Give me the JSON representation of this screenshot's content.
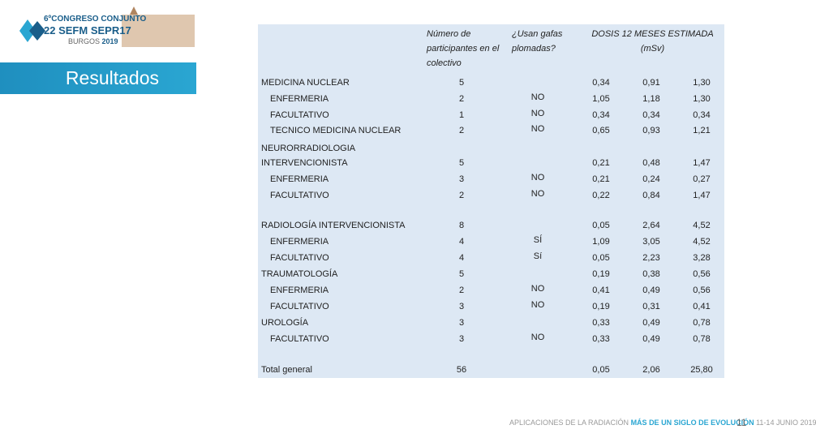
{
  "logo": {
    "edition": "6º",
    "line1": "CONGRESO CONJUNTO",
    "year_left": "22",
    "sefm": "SEFM",
    "sepr": "SEPR",
    "year_right": "17",
    "city": "BURGOS",
    "year": "2019"
  },
  "section_title": "Resultados",
  "table": {
    "header": {
      "participants": "Número de participantes en el colectivo",
      "goggles": "¿Usan gafas plomadas?",
      "dose": "DOSIS 12 MESES ESTIMADA (mSv)"
    },
    "groups": [
      {
        "label": "MEDICINA NUCLEAR",
        "n": 5,
        "dose": [
          "0,34",
          "0,91",
          "1,30"
        ],
        "rows": [
          {
            "label": "ENFERMERIA",
            "n": 2,
            "goggles": "NO",
            "dose": [
              "1,05",
              "1,18",
              "1,30"
            ]
          },
          {
            "label": "FACULTATIVO",
            "n": 1,
            "goggles": "NO",
            "dose": [
              "0,34",
              "0,34",
              "0,34"
            ]
          },
          {
            "label": "TECNICO MEDICINA NUCLEAR",
            "n": 2,
            "goggles": "NO",
            "dose": [
              "0,65",
              "0,93",
              "1,21"
            ]
          }
        ]
      },
      {
        "label": "NEURORRADIOLOGIA INTERVENCIONISTA",
        "n": 5,
        "dose": [
          "0,21",
          "0,48",
          "1,47"
        ],
        "rows": [
          {
            "label": "ENFERMERIA",
            "n": 3,
            "goggles": "NO",
            "dose": [
              "0,21",
              "0,24",
              "0,27"
            ]
          },
          {
            "label": "FACULTATIVO",
            "n": 2,
            "goggles": "NO",
            "dose": [
              "0,22",
              "0,84",
              "1,47"
            ]
          }
        ]
      },
      {
        "label": "RADIOLOGÍA INTERVENCIONISTA",
        "n": 8,
        "dose": [
          "0,05",
          "2,64",
          "4,52"
        ],
        "rows": [
          {
            "label": "ENFERMERIA",
            "n": 4,
            "goggles": "SÍ",
            "dose": [
              "1,09",
              "3,05",
              "4,52"
            ]
          },
          {
            "label": "FACULTATIVO",
            "n": 4,
            "goggles": "Sí",
            "dose": [
              "0,05",
              "2,23",
              "3,28"
            ]
          }
        ]
      },
      {
        "label": "TRAUMATOLOGÍA",
        "n": 5,
        "dose": [
          "0,19",
          "0,38",
          "0,56"
        ],
        "rows": [
          {
            "label": "ENFERMERIA",
            "n": 2,
            "goggles": "NO",
            "dose": [
              "0,41",
              "0,49",
              "0,56"
            ]
          },
          {
            "label": "FACULTATIVO",
            "n": 3,
            "goggles": "NO",
            "dose": [
              "0,19",
              "0,31",
              "0,41"
            ]
          }
        ]
      },
      {
        "label": "UROLOGÍA",
        "n": 3,
        "dose": [
          "0,33",
          "0,49",
          "0,78"
        ],
        "rows": [
          {
            "label": "FACULTATIVO",
            "n": 3,
            "goggles": "NO",
            "dose": [
              "0,33",
              "0,49",
              "0,78"
            ]
          }
        ]
      }
    ],
    "total": {
      "label": "Total general",
      "n": 56,
      "dose": [
        "0,05",
        "2,06",
        "25,80"
      ]
    }
  },
  "footer": {
    "left": "APLICACIONES DE LA RADIACIÓN",
    "highlight": "MÁS DE UN SIGLO DE EVOLUCIÓN",
    "dates": "11-14 JUNIO 2019",
    "page": "11"
  }
}
